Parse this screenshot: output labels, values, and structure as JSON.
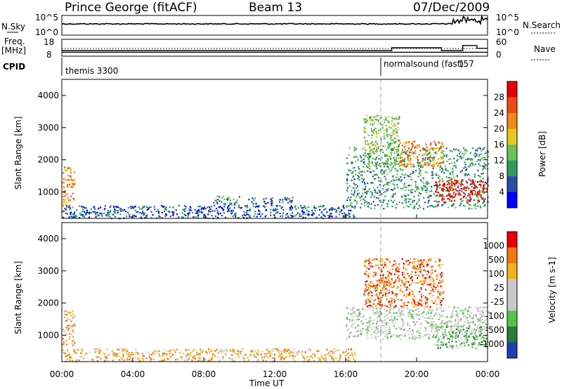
{
  "header": {
    "station": "Prince George (fitACF)",
    "beam": "Beam 13",
    "date": "07/Dec/2009"
  },
  "side_labels": {
    "n_sky": "N.Sky",
    "n_search": "N.Search",
    "freq": "Freq.",
    "freq_unit": "[MHz]",
    "nave": "Nave",
    "cpid": "CPID"
  },
  "cpid_labels": {
    "mode1": "themis 3300",
    "mode2": "normalsound (fast)",
    "mode2_id": "157"
  },
  "colors": {
    "power_scale": [
      "#0000ff",
      "#2a4ea8",
      "#2e9c5a",
      "#69c253",
      "#e6c81e",
      "#ef8a16",
      "#ee4a14",
      "#e80000"
    ],
    "velocity_scale": [
      "#1e3fb4",
      "#2a7a3a",
      "#55c24a",
      "#c8c8c8",
      "#c8c8c8",
      "#f2b21c",
      "#ef7a10",
      "#e80000"
    ]
  },
  "chart_data": [
    {
      "type": "line",
      "name": "sky-search-noise",
      "ylabel_left": "N.Sky",
      "ylabel_right": "N.Search",
      "y_ticks_left": [
        "10^5",
        "10^0"
      ],
      "y_ticks_right": [
        "10^5",
        "10^0"
      ]
    },
    {
      "type": "line",
      "name": "frequency-nave",
      "ylabel_left": "Freq. [MHz]",
      "ylabel_right": "Nave",
      "y_ticks_left": [
        "18",
        "8"
      ],
      "y_ticks_right": [
        "60",
        "0"
      ],
      "freq_segments": [
        {
          "start_hour": 0.0,
          "end_hour": 18.0,
          "freq": 10.3
        },
        {
          "start_hour": 18.0,
          "end_hour": 24.0,
          "freq": 10.3
        }
      ],
      "nave_segments": [
        {
          "start_hour": 0.0,
          "end_hour": 18.0,
          "value": 20
        },
        {
          "start_hour": 18.0,
          "end_hour": 18.6,
          "value": 20
        },
        {
          "start_hour": 18.6,
          "end_hour": 21.4,
          "value": 30
        },
        {
          "start_hour": 21.4,
          "end_hour": 22.6,
          "value": 20
        },
        {
          "start_hour": 22.6,
          "end_hour": 23.4,
          "value": 38
        },
        {
          "start_hour": 23.4,
          "end_hour": 24.0,
          "value": 28
        }
      ]
    },
    {
      "type": "heatmap",
      "name": "power",
      "xlabel": "",
      "ylabel": "Slant Range [km]",
      "colorbar_label": "Power [dB]",
      "colorbar_ticks": [
        "28",
        "24",
        "20",
        "16",
        "12",
        "8",
        "4"
      ],
      "y_ticks": [
        "4000",
        "3000",
        "2000",
        "1000"
      ],
      "ylim": [
        180,
        4500
      ],
      "xlim": [
        0,
        24
      ],
      "echo_regions": [
        {
          "t0": 0.0,
          "t1": 0.7,
          "r0": 500,
          "r1": 1800,
          "level": 5
        },
        {
          "t0": 0.0,
          "t1": 16.5,
          "r0": 200,
          "r1": 600,
          "level": 1
        },
        {
          "t0": 8.5,
          "t1": 10.0,
          "r0": 600,
          "r1": 900,
          "level": 2
        },
        {
          "t0": 10.5,
          "t1": 13.0,
          "r0": 650,
          "r1": 850,
          "level": 1
        },
        {
          "t0": 16.0,
          "t1": 24.0,
          "r0": 500,
          "r1": 2400,
          "level": 2
        },
        {
          "t0": 17.0,
          "t1": 19.0,
          "r0": 1800,
          "r1": 3400,
          "level": 3
        },
        {
          "t0": 19.0,
          "t1": 21.5,
          "r0": 1800,
          "r1": 2600,
          "level": 5
        },
        {
          "t0": 21.0,
          "t1": 24.0,
          "r0": 700,
          "r1": 1400,
          "level": 7
        }
      ]
    },
    {
      "type": "heatmap",
      "name": "velocity",
      "xlabel": "Time UT",
      "ylabel": "Slant Range [km]",
      "colorbar_label": "Velocity [m s-1]",
      "colorbar_ticks": [
        "1000",
        "500",
        "100",
        "25",
        "-25",
        "-100",
        "-500",
        "-1000"
      ],
      "y_ticks": [
        "4000",
        "3000",
        "2000",
        "1000"
      ],
      "x_ticks": [
        "00:00",
        "04:00",
        "08:00",
        "12:00",
        "16:00",
        "20:00",
        "00:00"
      ],
      "ylim": [
        180,
        4500
      ],
      "xlim": [
        0,
        24
      ],
      "echo_regions": [
        {
          "t0": 0.0,
          "t1": 0.7,
          "r0": 700,
          "r1": 1800,
          "level": 5
        },
        {
          "t0": 0.0,
          "t1": 16.5,
          "r0": 200,
          "r1": 600,
          "level": 5
        },
        {
          "t0": 16.0,
          "t1": 24.0,
          "r0": 900,
          "r1": 1900,
          "level": 3
        },
        {
          "t0": 17.0,
          "t1": 21.5,
          "r0": 1900,
          "r1": 3400,
          "level": 6
        },
        {
          "t0": 21.0,
          "t1": 24.0,
          "r0": 600,
          "r1": 1300,
          "level": 2
        }
      ]
    }
  ]
}
